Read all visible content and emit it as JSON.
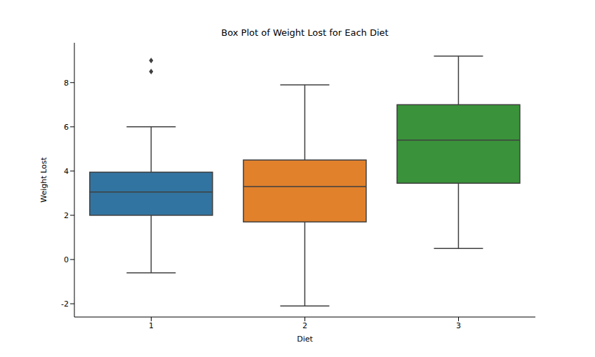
{
  "chart_data": {
    "type": "box",
    "title": "Box Plot of Weight Lost for Each Diet",
    "x_label": "Diet",
    "y_label": "Weight Lost",
    "categories": [
      "1",
      "2",
      "3"
    ],
    "boxes": [
      {
        "whisker_low": -0.6,
        "q1": 2.0,
        "median": 3.05,
        "q3": 3.95,
        "whisker_high": 6.0,
        "outliers": [
          8.5,
          9.0
        ]
      },
      {
        "whisker_low": -2.1,
        "q1": 1.7,
        "median": 3.3,
        "q3": 4.5,
        "whisker_high": 7.9,
        "outliers": []
      },
      {
        "whisker_low": 0.5,
        "q1": 3.45,
        "median": 5.4,
        "q3": 7.0,
        "whisker_high": 9.2,
        "outliers": []
      }
    ],
    "colors": [
      "#3274a1",
      "#e1812c",
      "#3a923a"
    ],
    "ylim": [
      -2.6,
      9.8
    ],
    "yticks": [
      -2,
      0,
      2,
      4,
      6,
      8
    ],
    "grid": false
  }
}
